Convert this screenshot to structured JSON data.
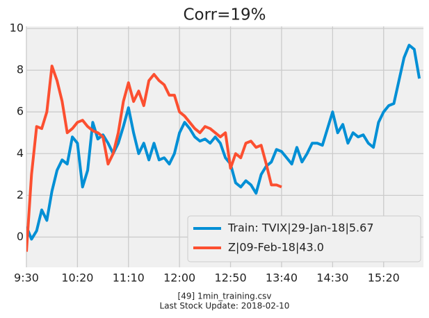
{
  "chart_data": {
    "type": "line",
    "title": "Corr=19%",
    "footnote": [
      "[49] 1min_training.csv",
      "Last Stock Update: 2018-02-10"
    ],
    "x": [
      570,
      575,
      580,
      585,
      590,
      595,
      600,
      605,
      610,
      615,
      620,
      625,
      630,
      635,
      640,
      645,
      650,
      655,
      660,
      665,
      670,
      675,
      680,
      685,
      690,
      695,
      700,
      705,
      710,
      715,
      720,
      725,
      730,
      735,
      740,
      745,
      750,
      755,
      760,
      765,
      770,
      775,
      780,
      785,
      790,
      795,
      800,
      805,
      810,
      815,
      820,
      825,
      830,
      835,
      840,
      845,
      850,
      855,
      860,
      865,
      870,
      875,
      880,
      885,
      890,
      895,
      900,
      905,
      910,
      915,
      920,
      925,
      930,
      935,
      940,
      945,
      950,
      955
    ],
    "series": [
      {
        "name": "Train: TVIX|29-Jan-18|5.67",
        "color": "#008fd5",
        "values": [
          0.5,
          -0.1,
          0.3,
          1.3,
          0.8,
          2.2,
          3.2,
          3.7,
          3.5,
          4.8,
          4.5,
          2.4,
          3.2,
          5.5,
          4.7,
          4.9,
          4.5,
          4.0,
          4.5,
          5.3,
          6.2,
          5.0,
          4.0,
          4.5,
          3.7,
          4.5,
          3.7,
          3.8,
          3.5,
          4.0,
          5.0,
          5.5,
          5.2,
          4.8,
          4.6,
          4.7,
          4.5,
          4.8,
          4.5,
          3.8,
          3.5,
          2.6,
          2.4,
          2.7,
          2.5,
          2.1,
          3.0,
          3.4,
          3.6,
          4.2,
          4.1,
          3.8,
          3.5,
          4.3,
          3.6,
          4.0,
          4.5,
          4.5,
          4.4,
          5.2,
          6.0,
          5.0,
          5.4,
          4.5,
          5.0,
          4.8,
          4.9,
          4.5,
          4.3,
          5.5,
          6.0,
          6.3,
          6.4,
          7.5,
          8.6,
          9.2,
          9.0,
          7.6
        ]
      },
      {
        "name": "Z|09-Feb-18|43.0",
        "color": "#fc4f30",
        "values": [
          -0.7,
          3.0,
          5.3,
          5.2,
          6.0,
          8.2,
          7.5,
          6.5,
          5.0,
          5.2,
          5.5,
          5.6,
          5.3,
          5.1,
          5.0,
          4.8,
          3.5,
          4.0,
          5.0,
          6.5,
          7.4,
          6.5,
          7.0,
          6.3,
          7.5,
          7.8,
          7.5,
          7.3,
          6.8,
          6.8,
          6.0,
          5.8,
          5.5,
          5.2,
          5.0,
          5.3,
          5.2,
          5.0,
          4.8,
          5.0,
          3.3,
          4.0,
          3.8,
          4.5,
          4.6,
          4.3,
          4.4,
          3.5,
          2.5,
          2.5,
          2.4,
          null,
          null,
          null,
          null,
          null,
          null,
          null,
          null,
          null,
          null,
          null,
          null,
          null,
          null,
          null,
          null,
          null,
          null,
          null,
          null,
          null,
          null,
          null,
          null,
          null,
          null,
          null
        ]
      }
    ],
    "xlim": [
      570,
      959
    ],
    "xticks": [
      {
        "value": 570,
        "label": "9:30"
      },
      {
        "value": 620,
        "label": "10:20"
      },
      {
        "value": 670,
        "label": "11:10"
      },
      {
        "value": 720,
        "label": "12:00"
      },
      {
        "value": 770,
        "label": "12:50"
      },
      {
        "value": 820,
        "label": "13:40"
      },
      {
        "value": 870,
        "label": "14:30"
      },
      {
        "value": 920,
        "label": "15:20"
      }
    ],
    "ylim": [
      -1.45,
      10.1
    ],
    "yticks": [
      0,
      2,
      4,
      6,
      8,
      10
    ],
    "grid": true,
    "legend": "lower right"
  }
}
